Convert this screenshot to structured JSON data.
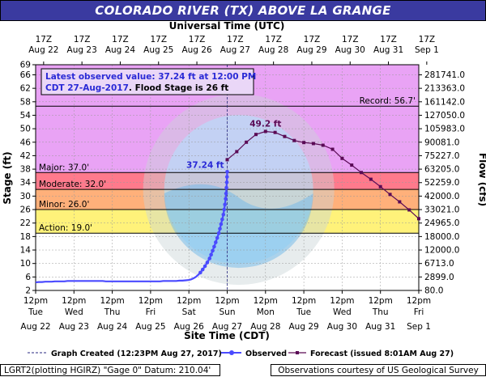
{
  "title": "COLORADO RIVER (TX) ABOVE LA GRANGE",
  "top_axis_title": "Universal Time (UTC)",
  "bottom_axis_title": "Site Time (CDT)",
  "left_axis_title": "Stage (ft)",
  "right_axis_title": "Flow (cfs)",
  "info_box": {
    "line1": "Latest observed value: 37.24 ft at 12:00 PM",
    "line2_date": "CDT 27-Aug-2017",
    "line2_flood": ". Flood Stage is 26 ft"
  },
  "legend": {
    "graph_created": "Graph Created (12:23PM Aug 27, 2017)",
    "observed": "Observed",
    "forecast": "Forecast (issued 8:01AM Aug 27)"
  },
  "footer": {
    "left": "LGRT2(plotting HGIRZ) \"Gage 0\" Datum: 210.04'",
    "right": "Observations courtesy of US Geological Survey"
  },
  "chart_data": {
    "type": "line",
    "x_unit": "days from Aug 22 12pm CDT",
    "xlim": [
      0,
      10
    ],
    "ylim": [
      2,
      69
    ],
    "y_ticks": [
      2,
      6,
      10,
      14,
      18,
      22,
      26,
      30,
      34,
      38,
      42,
      46,
      50,
      54,
      58,
      62,
      66,
      69
    ],
    "flow_ticks": [
      {
        "stage": 2,
        "label": "80.0"
      },
      {
        "stage": 6,
        "label": "2899.0"
      },
      {
        "stage": 10,
        "label": "6713.0"
      },
      {
        "stage": 14,
        "label": "12000.0"
      },
      {
        "stage": 18,
        "label": "18000.0"
      },
      {
        "stage": 22,
        "label": "24965.0"
      },
      {
        "stage": 26,
        "label": "33021.0"
      },
      {
        "stage": 30,
        "label": "42000.0"
      },
      {
        "stage": 34,
        "label": "52259.0"
      },
      {
        "stage": 38,
        "label": "63205.0"
      },
      {
        "stage": 42,
        "label": "75227.0"
      },
      {
        "stage": 46,
        "label": "90081.0"
      },
      {
        "stage": 50,
        "label": "105983.0"
      },
      {
        "stage": 54,
        "label": "127050.0"
      },
      {
        "stage": 58,
        "label": "161142.0"
      },
      {
        "stage": 62,
        "label": "213363.0"
      },
      {
        "stage": 66,
        "label": "281741.0"
      }
    ],
    "top_ticks": [
      {
        "l1": "17Z",
        "l2": "Aug 22"
      },
      {
        "l1": "17Z",
        "l2": "Aug 23"
      },
      {
        "l1": "17Z",
        "l2": "Aug 24"
      },
      {
        "l1": "17Z",
        "l2": "Aug 25"
      },
      {
        "l1": "17Z",
        "l2": "Aug 26"
      },
      {
        "l1": "17Z",
        "l2": "Aug 27"
      },
      {
        "l1": "17Z",
        "l2": "Aug 28"
      },
      {
        "l1": "17Z",
        "l2": "Aug 29"
      },
      {
        "l1": "17Z",
        "l2": "Aug 30"
      },
      {
        "l1": "17Z",
        "l2": "Aug 31"
      },
      {
        "l1": "17Z",
        "l2": "Sep  1"
      }
    ],
    "bottom_ticks": [
      {
        "t": "12pm",
        "d": "Tue",
        "date": "Aug 22"
      },
      {
        "t": "12pm",
        "d": "Wed",
        "date": "Aug 23"
      },
      {
        "t": "12pm",
        "d": "Thu",
        "date": "Aug 24"
      },
      {
        "t": "12pm",
        "d": "Fri",
        "date": "Aug 25"
      },
      {
        "t": "12pm",
        "d": "Sat",
        "date": "Aug 26"
      },
      {
        "t": "12pm",
        "d": "Sun",
        "date": "Aug 27"
      },
      {
        "t": "12pm",
        "d": "Mon",
        "date": "Aug 28"
      },
      {
        "t": "12pm",
        "d": "Tue",
        "date": "Aug 29"
      },
      {
        "t": "12pm",
        "d": "Wed",
        "date": "Aug 30"
      },
      {
        "t": "12pm",
        "d": "Thu",
        "date": "Aug 31"
      },
      {
        "t": "12pm",
        "d": "Fri",
        "date": "Sep  1"
      }
    ],
    "bands": [
      {
        "name": "Record",
        "label": "Record: 56.7'",
        "from": 37.0,
        "to": 69,
        "color": "#e9a3f5"
      },
      {
        "name": "Major",
        "label": "Major: 37.0'",
        "from": 32.0,
        "to": 37.0,
        "color": "#ff7a8c"
      },
      {
        "name": "Moderate",
        "label": "Moderate: 32.0'",
        "from": 26.0,
        "to": 32.0,
        "color": "#ffb07a"
      },
      {
        "name": "Minor",
        "label": "Minor: 26.0'",
        "from": 19.0,
        "to": 26.0,
        "color": "#fff27a"
      },
      {
        "name": "Action",
        "label": "Action: 19.0'",
        "from": 2,
        "to": 19.0,
        "color": "#ffffff"
      }
    ],
    "record_stage": 56.7,
    "observed_label": "37.24 ft",
    "forecast_peak_label": "49.2 ft",
    "graph_created_x": 5.0,
    "observed": [
      [
        0.0,
        4.4
      ],
      [
        0.08,
        4.5
      ],
      [
        0.17,
        4.5
      ],
      [
        0.25,
        4.6
      ],
      [
        0.33,
        4.6
      ],
      [
        0.42,
        4.6
      ],
      [
        0.5,
        4.7
      ],
      [
        0.58,
        4.7
      ],
      [
        0.67,
        4.7
      ],
      [
        0.75,
        4.7
      ],
      [
        0.83,
        4.8
      ],
      [
        0.92,
        4.8
      ],
      [
        1.0,
        4.8
      ],
      [
        1.08,
        4.8
      ],
      [
        1.17,
        4.8
      ],
      [
        1.25,
        4.8
      ],
      [
        1.33,
        4.8
      ],
      [
        1.42,
        4.8
      ],
      [
        1.5,
        4.8
      ],
      [
        1.58,
        4.8
      ],
      [
        1.67,
        4.8
      ],
      [
        1.75,
        4.8
      ],
      [
        1.83,
        4.7
      ],
      [
        1.92,
        4.7
      ],
      [
        2.0,
        4.7
      ],
      [
        2.08,
        4.7
      ],
      [
        2.17,
        4.7
      ],
      [
        2.25,
        4.7
      ],
      [
        2.33,
        4.7
      ],
      [
        2.42,
        4.7
      ],
      [
        2.5,
        4.7
      ],
      [
        2.58,
        4.7
      ],
      [
        2.67,
        4.7
      ],
      [
        2.75,
        4.7
      ],
      [
        2.83,
        4.7
      ],
      [
        2.92,
        4.7
      ],
      [
        3.0,
        4.7
      ],
      [
        3.08,
        4.7
      ],
      [
        3.17,
        4.7
      ],
      [
        3.25,
        4.7
      ],
      [
        3.33,
        4.8
      ],
      [
        3.42,
        4.8
      ],
      [
        3.5,
        4.8
      ],
      [
        3.58,
        4.8
      ],
      [
        3.67,
        4.8
      ],
      [
        3.75,
        4.9
      ],
      [
        3.83,
        4.9
      ],
      [
        3.92,
        5.0
      ],
      [
        4.0,
        5.1
      ],
      [
        4.06,
        5.3
      ],
      [
        4.12,
        5.6
      ],
      [
        4.18,
        6.0
      ],
      [
        4.24,
        6.6
      ],
      [
        4.3,
        7.3
      ],
      [
        4.36,
        8.2
      ],
      [
        4.42,
        9.2
      ],
      [
        4.48,
        10.3
      ],
      [
        4.54,
        11.5
      ],
      [
        4.58,
        12.6
      ],
      [
        4.62,
        13.8
      ],
      [
        4.66,
        15.0
      ],
      [
        4.7,
        16.3
      ],
      [
        4.74,
        17.6
      ],
      [
        4.78,
        19.0
      ],
      [
        4.81,
        20.3
      ],
      [
        4.84,
        21.7
      ],
      [
        4.87,
        23.1
      ],
      [
        4.9,
        24.5
      ],
      [
        4.92,
        26.0
      ],
      [
        4.94,
        27.5
      ],
      [
        4.96,
        29.2
      ],
      [
        4.97,
        30.8
      ],
      [
        4.98,
        32.5
      ],
      [
        4.99,
        34.1
      ],
      [
        4.995,
        35.7
      ],
      [
        5.0,
        37.24
      ]
    ],
    "forecast": [
      [
        5.0,
        40.8
      ],
      [
        5.25,
        43.2
      ],
      [
        5.5,
        46.0
      ],
      [
        5.75,
        48.3
      ],
      [
        6.0,
        49.2
      ],
      [
        6.25,
        48.9
      ],
      [
        6.5,
        47.7
      ],
      [
        6.75,
        46.5
      ],
      [
        7.0,
        45.9
      ],
      [
        7.25,
        45.6
      ],
      [
        7.5,
        45.1
      ],
      [
        7.75,
        43.9
      ],
      [
        8.0,
        41.2
      ],
      [
        8.25,
        39.2
      ],
      [
        8.5,
        37.0
      ],
      [
        8.75,
        35.0
      ],
      [
        9.0,
        32.8
      ],
      [
        9.25,
        30.5
      ],
      [
        9.5,
        28.3
      ],
      [
        9.75,
        25.9
      ],
      [
        10.0,
        23.3
      ]
    ]
  }
}
